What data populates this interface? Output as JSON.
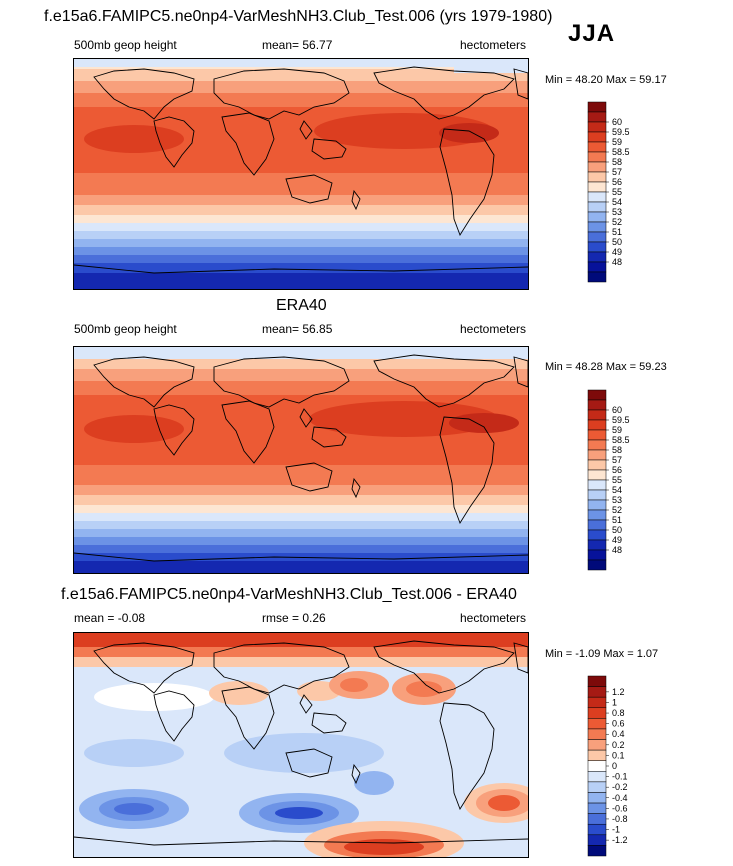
{
  "season": "JJA",
  "panel1": {
    "title": "f.e15a6.FAMIPC5.ne0np4-VarMeshNH3.Club_Test.006 (yrs 1979-1980)",
    "left": "500mb geop height",
    "center": "mean=  56.77",
    "right": "hectometers",
    "minmax": "Min =  48.20 Max =  59.17",
    "colorbar": {
      "labels": [
        "60",
        "59.5",
        "59",
        "58.5",
        "58",
        "57",
        "56",
        "55",
        "54",
        "53",
        "52",
        "51",
        "50",
        "49",
        "48"
      ],
      "colors": [
        "#7d0a0a",
        "#a51a14",
        "#c42a18",
        "#dc3e20",
        "#ec5a34",
        "#f37a52",
        "#f8a07c",
        "#fcc8a8",
        "#fde6d2",
        "#dae7fa",
        "#b8d0f6",
        "#92b4f0",
        "#6c93e6",
        "#4a6fda",
        "#2a4ccc",
        "#1428b0",
        "#07129a",
        "#000a7a"
      ]
    },
    "map": {
      "polar_s": "#0a1a9a",
      "tropics": "#ec5a34",
      "subtrop": "#f37a52"
    }
  },
  "panel2": {
    "title": "ERA40",
    "left": "500mb geop height",
    "center": "mean=  56.85",
    "right": "hectometers",
    "minmax": "Min =  48.28 Max =  59.23",
    "colorbar": {
      "labels": [
        "60",
        "59.5",
        "59",
        "58.5",
        "58",
        "57",
        "56",
        "55",
        "54",
        "53",
        "52",
        "51",
        "50",
        "49",
        "48"
      ],
      "colors": [
        "#7d0a0a",
        "#a51a14",
        "#c42a18",
        "#dc3e20",
        "#ec5a34",
        "#f37a52",
        "#f8a07c",
        "#fcc8a8",
        "#fde6d2",
        "#dae7fa",
        "#b8d0f6",
        "#92b4f0",
        "#6c93e6",
        "#4a6fda",
        "#2a4ccc",
        "#1428b0",
        "#07129a",
        "#000a7a"
      ]
    }
  },
  "panel3": {
    "title": "f.e15a6.FAMIPC5.ne0np4-VarMeshNH3.Club_Test.006 - ERA40",
    "left": "mean =  -0.08",
    "center": "rmse =   0.26",
    "right": "hectometers",
    "minmax": "Min =  -1.09 Max =   1.07",
    "colorbar": {
      "labels": [
        "1.2",
        "1",
        "0.8",
        "0.6",
        "0.4",
        "0.2",
        "0.1",
        "0",
        "-0.1",
        "-0.2",
        "-0.4",
        "-0.6",
        "-0.8",
        "-1",
        "-1.2"
      ],
      "colors": [
        "#7d0a0a",
        "#a51a14",
        "#c42a18",
        "#dc3e20",
        "#ec5a34",
        "#f37a52",
        "#f8a07c",
        "#fcc8a8",
        "#ffffff",
        "#dae7fa",
        "#b8d0f6",
        "#92b4f0",
        "#6c93e6",
        "#4a6fda",
        "#2a4ccc",
        "#1428b0",
        "#000a7a"
      ]
    }
  }
}
